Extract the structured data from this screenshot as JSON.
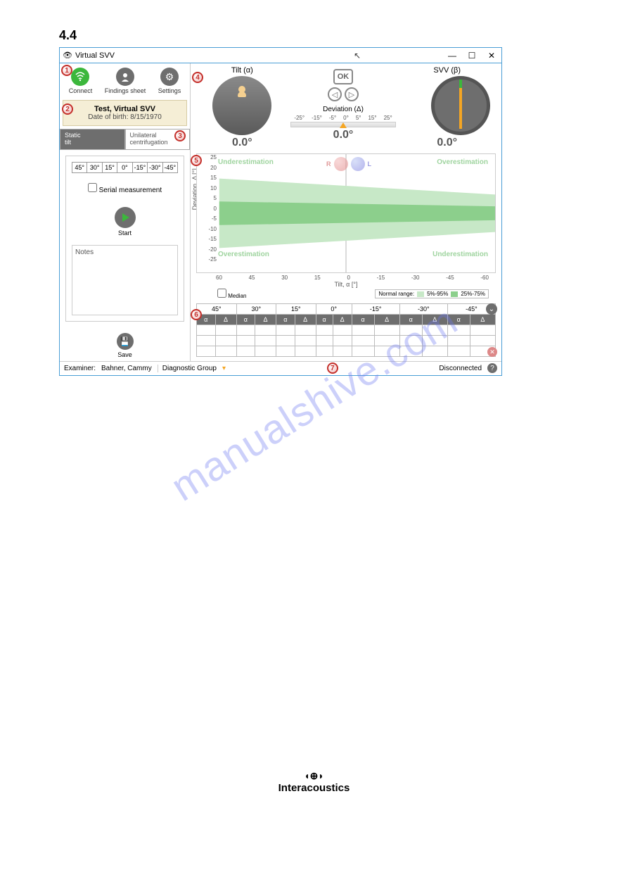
{
  "section_number": "4.4",
  "window": {
    "title": "Virtual SVV",
    "min": "—",
    "max": "☐",
    "close": "✕"
  },
  "toolbar": {
    "connect": "Connect",
    "findings": "Findings sheet",
    "settings": "Settings"
  },
  "patient": {
    "name": "Test, Virtual SVV",
    "dob_label": "Date of birth:",
    "dob": "8/15/1970"
  },
  "tabs": {
    "static": "Static\ntilt",
    "unilateral": "Unilateral\ncentrifugation"
  },
  "angles": [
    "45°",
    "30°",
    "15°",
    "0°",
    "-15°",
    "-30°",
    "-45°"
  ],
  "serial_label": "Serial measurement",
  "start_label": "Start",
  "notes_label": "Notes",
  "save_label": "Save",
  "dials": {
    "tilt_title": "Tilt (α)",
    "svv_title": "SVV (β)",
    "tilt_value": "0.0°",
    "svv_value": "0.0°",
    "dev_title": "Deviation (Δ)",
    "dev_value": "0.0°",
    "ok": "OK",
    "scale": [
      "-25°",
      "-15°",
      "-5°",
      "0°",
      "5°",
      "15°",
      "25°"
    ]
  },
  "graph": {
    "yaxis": "Deviation, Δ [°]",
    "xaxis": "Tilt, α [°]",
    "yticks": [
      "25",
      "20",
      "15",
      "10",
      "5",
      "0",
      "-5",
      "-10",
      "-15",
      "-20",
      "-25"
    ],
    "xticks": [
      "60",
      "45",
      "30",
      "15",
      "0",
      "-15",
      "-30",
      "-45",
      "-60"
    ],
    "anno_under": "Underestimation",
    "anno_over": "Overestimation",
    "head_r": "R",
    "head_l": "L",
    "median": "Median",
    "normal_label": "Normal range:",
    "range1": "5%-95%",
    "range2": "25%-75%",
    "colors": {
      "light": "#c7e8c7",
      "dark": "#8ccf8c",
      "bg": "#ffffff",
      "grid": "#e0e0e0"
    }
  },
  "table": {
    "cols": [
      "45°",
      "30°",
      "15°",
      "0°",
      "-15°",
      "-30°",
      "-45°"
    ],
    "sub": [
      "α",
      "Δ"
    ],
    "rows": 3
  },
  "status": {
    "examiner_label": "Examiner:",
    "examiner": "Bahner, Cammy",
    "diag": "Diagnostic Group",
    "conn": "Disconnected"
  },
  "callouts": {
    "1": "1",
    "2": "2",
    "3": "3",
    "4": "4",
    "5": "5",
    "6": "6",
    "7": "7"
  },
  "watermark": "manualshive.com",
  "footer": "Interacoustics"
}
